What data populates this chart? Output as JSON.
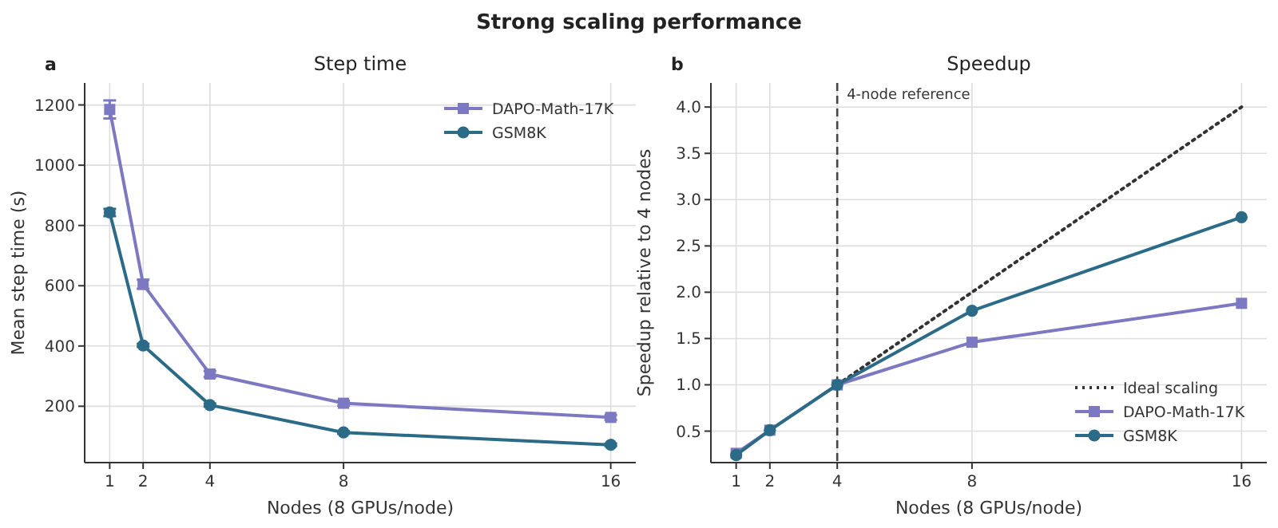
{
  "chart_data": [
    {
      "type": "line",
      "title": "Step time",
      "xlabel": "Nodes (8 GPUs/node)",
      "ylabel": "Mean step time (s)",
      "xlim": [
        0.25,
        16.75
      ],
      "xticks": [
        1,
        2,
        4,
        8,
        16
      ],
      "ylim": [
        13,
        1273
      ],
      "yticks": [
        200,
        400,
        600,
        800,
        1000,
        1200
      ],
      "grid": true,
      "legend": "top right",
      "line_style": "solid",
      "annotations": [
        "a",
        "Strong scaling performance"
      ],
      "series": [
        {
          "name": "DAPO-Math-17K",
          "color": "#7c78c2",
          "marker": "square",
          "x": [
            1,
            2,
            4,
            8,
            16
          ],
          "values": [
            1185,
            605,
            307,
            210,
            163
          ],
          "errors": [
            30,
            15,
            10,
            8,
            8
          ]
        },
        {
          "name": "GSM8K",
          "color": "#2c6b87",
          "marker": "circle",
          "x": [
            1,
            2,
            4,
            8,
            16
          ],
          "values": [
            843,
            402,
            204,
            113,
            72
          ],
          "errors": [
            12,
            5,
            5,
            4,
            4
          ]
        }
      ]
    },
    {
      "type": "line",
      "title": "Speedup",
      "xlabel": "Nodes (8 GPUs/node)",
      "ylabel": "Speedup relative to 4 nodes",
      "xlim": [
        0.25,
        16.75
      ],
      "xticks": [
        1,
        2,
        4,
        8,
        16
      ],
      "ylim": [
        0.16,
        4.26
      ],
      "yticks": [
        0.5,
        {
          "value": 1,
          "label": "1.0"
        },
        1.5,
        {
          "value": 2,
          "label": "2.0"
        },
        2.5,
        {
          "value": 3,
          "label": "3.0"
        },
        3.5,
        {
          "value": 4,
          "label": "4.0"
        }
      ],
      "grid": true,
      "legend": "bottom right",
      "annotations": [
        "b"
      ],
      "ref_lines": [
        {
          "axis": "x",
          "value": 4,
          "label": "4-node reference",
          "color": "#444444",
          "line_style": "dashed"
        }
      ],
      "series": [
        {
          "name": "Ideal scaling",
          "color": "#333333",
          "marker": "none",
          "line_style": "dotted",
          "x": [
            4,
            16
          ],
          "values": [
            1,
            4
          ]
        },
        {
          "name": "DAPO-Math-17K",
          "color": "#7c78c2",
          "marker": "square",
          "line_style": "solid",
          "x": [
            1,
            2,
            4,
            8,
            16
          ],
          "values": [
            0.26,
            0.51,
            1,
            1.46,
            1.88
          ]
        },
        {
          "name": "GSM8K",
          "color": "#2c6b87",
          "marker": "circle",
          "line_style": "solid",
          "x": [
            1,
            2,
            4,
            8,
            16
          ],
          "values": [
            0.24,
            0.51,
            1,
            1.8,
            2.81
          ]
        }
      ]
    }
  ]
}
